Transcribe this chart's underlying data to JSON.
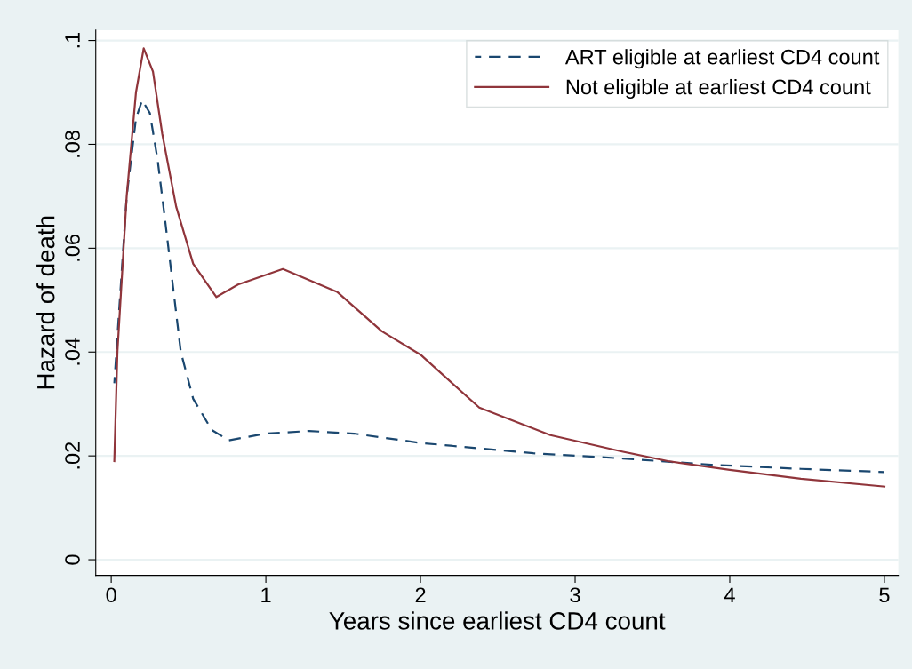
{
  "chart_data": {
    "type": "line",
    "xlabel": "Years since earliest CD4 count",
    "ylabel": "Hazard of death",
    "xlim": [
      -0.1,
      5.09
    ],
    "ylim": [
      -0.003,
      0.102
    ],
    "xticks": [
      0,
      1,
      2,
      3,
      4,
      5
    ],
    "yticks": [
      0,
      {
        "value": 0.02,
        "label": ".02"
      },
      {
        "value": 0.04,
        "label": ".04"
      },
      {
        "value": 0.06,
        "label": ".06"
      },
      {
        "value": 0.08,
        "label": ".08"
      },
      {
        "value": 0.1,
        "label": ".1"
      }
    ],
    "grid": "y",
    "legend": "top right",
    "series": [
      {
        "name": "ART eligible at earliest CD4 count",
        "color": "#1a476f",
        "line_style": "dashed",
        "x": [
          0.02,
          0.1,
          0.16,
          0.2,
          0.25,
          0.3,
          0.35,
          0.39,
          0.45,
          0.53,
          0.65,
          0.76,
          1.0,
          1.28,
          1.57,
          2.0,
          2.73,
          3.31,
          3.88,
          4.46,
          5.0
        ],
        "values": [
          0.034,
          0.07,
          0.085,
          0.0885,
          0.086,
          0.077,
          0.065,
          0.055,
          0.04,
          0.031,
          0.025,
          0.023,
          0.0243,
          0.0248,
          0.0243,
          0.0225,
          0.0205,
          0.0195,
          0.0183,
          0.0175,
          0.0169
        ]
      },
      {
        "name": "Not eligible at earliest CD4 count",
        "color": "#90353b",
        "line_style": "solid",
        "x": [
          0.02,
          0.04,
          0.1,
          0.16,
          0.21,
          0.27,
          0.33,
          0.42,
          0.53,
          0.68,
          0.82,
          1.11,
          1.46,
          1.75,
          2.0,
          2.38,
          2.84,
          3.31,
          3.6,
          4.0,
          4.46,
          5.0
        ],
        "values": [
          0.019,
          0.04,
          0.07,
          0.09,
          0.0985,
          0.094,
          0.082,
          0.068,
          0.057,
          0.0506,
          0.053,
          0.056,
          0.0516,
          0.044,
          0.0395,
          0.0293,
          0.024,
          0.0208,
          0.019,
          0.0173,
          0.0156,
          0.0141
        ]
      }
    ]
  }
}
